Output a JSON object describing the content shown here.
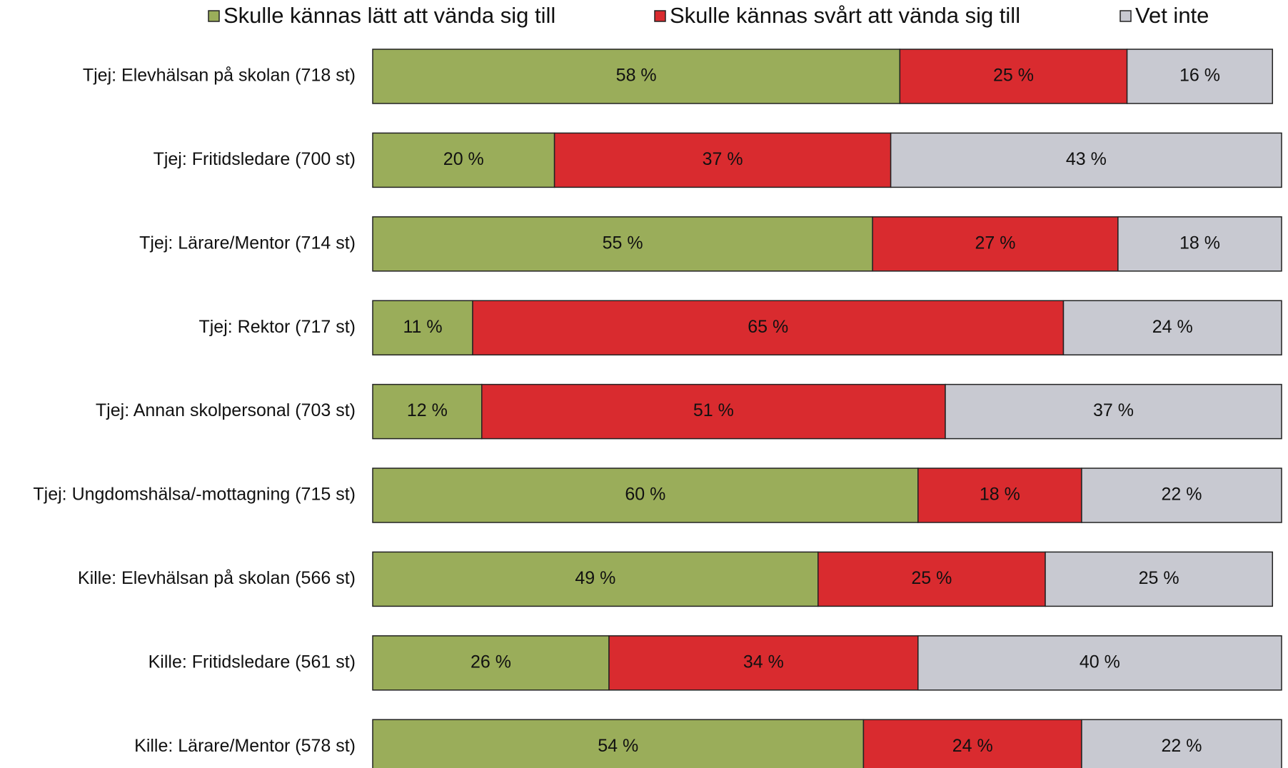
{
  "chart_data": {
    "type": "stacked-bar-horizontal",
    "categories": [
      "Tjej: Elevhälsan på skolan (718 st)",
      "Tjej: Fritidsledare (700 st)",
      "Tjej: Lärare/Mentor (714 st)",
      "Tjej: Rektor (717 st)",
      "Tjej: Annan skolpersonal (703 st)",
      "Tjej: Ungdomshälsa/-mottagning (715 st)",
      "Kille: Elevhälsan på skolan (566 st)",
      "Kille: Fritidsledare (561 st)",
      "Kille: Lärare/Mentor (578 st)"
    ],
    "series": [
      {
        "name": "Skulle kännas lätt att vända sig till",
        "color": "#9aad5a",
        "values": [
          58,
          20,
          55,
          11,
          12,
          60,
          49,
          26,
          54
        ],
        "value_labels": [
          "58 %",
          "20 %",
          "55 %",
          "11 %",
          "12 %",
          "60 %",
          "49 %",
          "26 %",
          "54 %"
        ]
      },
      {
        "name": "Skulle kännas svårt att vända sig till",
        "color": "#d92b2f",
        "values": [
          25,
          37,
          27,
          65,
          51,
          18,
          25,
          34,
          24
        ],
        "value_labels": [
          "25 %",
          "37 %",
          "27 %",
          "65 %",
          "51 %",
          "18 %",
          "25 %",
          "34 %",
          "24 %"
        ]
      },
      {
        "name": "Vet inte",
        "color": "#c8c9d1",
        "values": [
          16,
          43,
          18,
          24,
          37,
          22,
          25,
          40,
          22
        ],
        "value_labels": [
          "16 %",
          "43 %",
          "18 %",
          "24 %",
          "37 %",
          "22 %",
          "25 %",
          "40 %",
          "22 %"
        ]
      }
    ],
    "xlim": [
      0,
      100
    ],
    "legend": "top"
  }
}
